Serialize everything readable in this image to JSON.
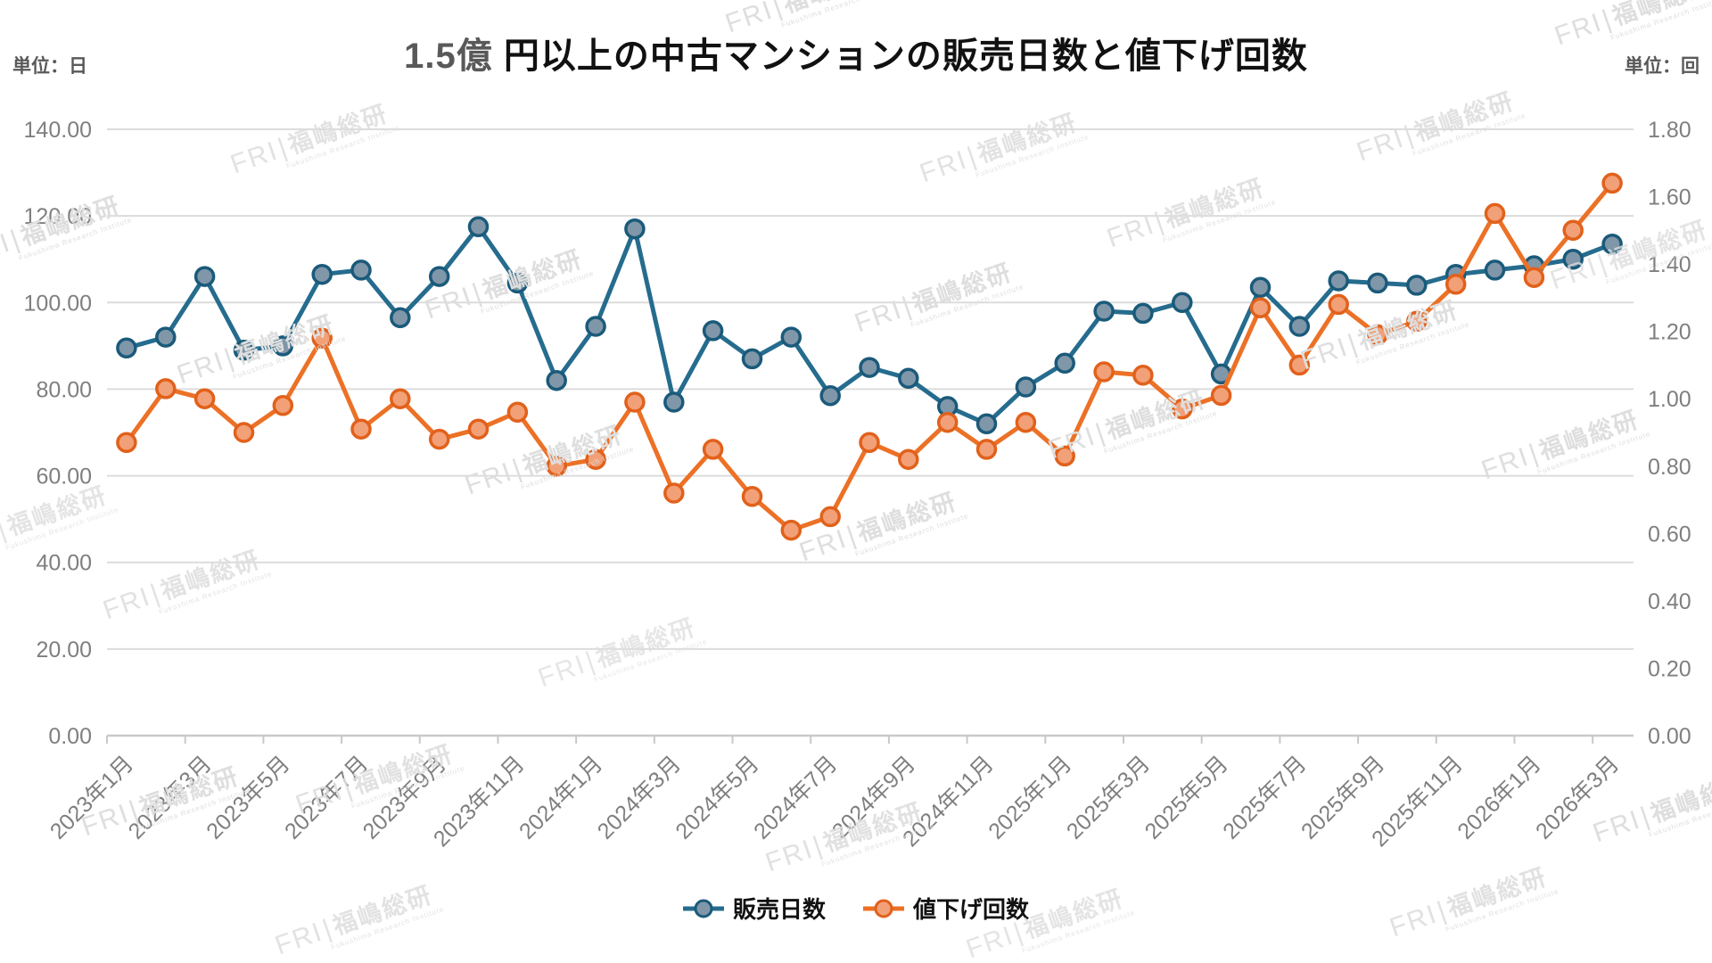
{
  "title": {
    "prefix": "1.5億",
    "rest": " 円以上の中古マンションの販売日数と値下げ回数"
  },
  "chart_data": {
    "type": "line",
    "title": "1.5億 円以上の中古マンションの販売日数と値下げ回数",
    "left_axis": {
      "unit_label": "単位：日",
      "min": 0,
      "max": 140,
      "step": 20,
      "decimals": 2
    },
    "right_axis": {
      "unit_label": "単位：回",
      "min": 0,
      "max": 1.8,
      "step": 0.2,
      "decimals": 2
    },
    "x_label_every": 2,
    "categories": [
      "2023年1月",
      "2023年2月",
      "2023年3月",
      "2023年4月",
      "2023年5月",
      "2023年6月",
      "2023年7月",
      "2023年8月",
      "2023年9月",
      "2023年10月",
      "2023年11月",
      "2023年12月",
      "2024年1月",
      "2024年2月",
      "2024年3月",
      "2024年4月",
      "2024年5月",
      "2024年6月",
      "2024年7月",
      "2024年8月",
      "2024年9月",
      "2024年10月",
      "2024年11月",
      "2024年12月",
      "2025年1月",
      "2025年2月",
      "2025年3月",
      "2025年4月",
      "2025年5月",
      "2025年6月",
      "2025年7月",
      "2025年8月",
      "2025年9月",
      "2025年10月",
      "2025年11月",
      "2025年12月",
      "2026年1月",
      "2026年2月",
      "2026年3月"
    ],
    "series": [
      {
        "name": "販売日数",
        "axis": "left",
        "color": "#256C8E",
        "marker_fill": "#8096A9",
        "marker_stroke": "#1A5A7A",
        "values": [
          89.5,
          92,
          106,
          89,
          90,
          106.5,
          107.5,
          96.5,
          106,
          117.5,
          104.5,
          82,
          94.5,
          117,
          77,
          93.5,
          87,
          92,
          78.5,
          85,
          82.5,
          76,
          72,
          80.5,
          86,
          98,
          97.5,
          100,
          83.5,
          103.5,
          94.5,
          105,
          104.5,
          104,
          106.5,
          107.5,
          108.5,
          110,
          113.5
        ]
      },
      {
        "name": "値下げ回数",
        "axis": "right",
        "color": "#EC7126",
        "marker_fill": "#F2A077",
        "marker_stroke": "#E1611B",
        "values": [
          0.87,
          1.03,
          1.0,
          0.9,
          0.98,
          1.18,
          0.91,
          1.0,
          0.88,
          0.91,
          0.96,
          0.8,
          0.82,
          0.99,
          0.72,
          0.85,
          0.71,
          0.61,
          0.65,
          0.87,
          0.82,
          0.93,
          0.85,
          0.93,
          0.83,
          1.08,
          1.07,
          0.97,
          1.01,
          1.27,
          1.1,
          1.28,
          1.19,
          1.23,
          1.34,
          1.55,
          1.36,
          1.5,
          1.64
        ]
      }
    ],
    "grid": true,
    "legend_position": "bottom",
    "colors": {
      "grid": "#DCDCDC",
      "axis_line": "#C9C9C9",
      "axis_text": "#7F7F7F",
      "unit_text": "#595959"
    }
  },
  "watermark": {
    "short": "FRI",
    "jp": "福嶋総研",
    "en": "Fukushima Research Institute"
  }
}
